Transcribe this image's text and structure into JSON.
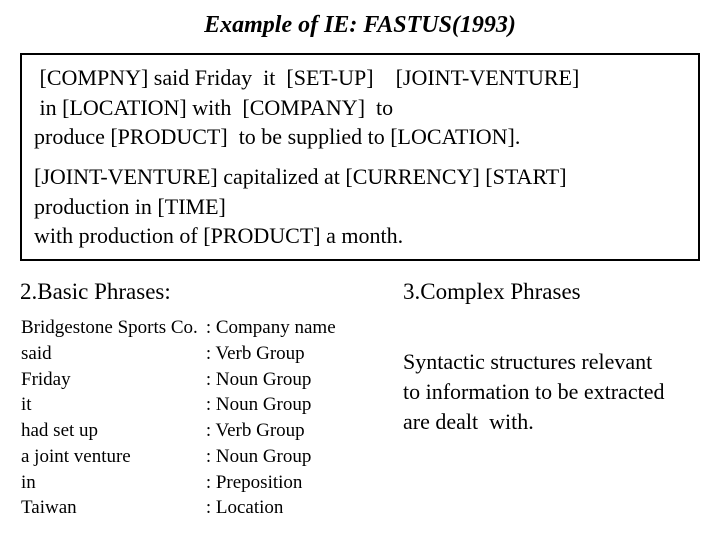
{
  "title": "Example of IE: FASTUS(1993)",
  "box": {
    "p1_l1": " [COMPNY] said Friday  it  [SET-UP]    [JOINT-VENTURE]",
    "p1_l2": " in [LOCATION] with  [COMPANY]  to",
    "p1_l3": "produce [PRODUCT]  to be supplied to [LOCATION].",
    "p2_l1": "[JOINT-VENTURE] capitalized at [CURRENCY] [START]",
    "p2_l2": "production in [TIME]",
    "p2_l3": "with production of [PRODUCT] a month."
  },
  "left": {
    "heading": "2.Basic Phrases:",
    "rows": [
      {
        "a": "Bridgestone Sports Co.",
        "b": ": Company name"
      },
      {
        "a": "said",
        "b": ": Verb Group"
      },
      {
        "a": "Friday",
        "b": ": Noun Group"
      },
      {
        "a": "it",
        "b": ": Noun Group"
      },
      {
        "a": "had set up",
        "b": ": Verb Group"
      },
      {
        "a": "a joint venture",
        "b": ": Noun Group"
      },
      {
        "a": "in",
        "b": ": Preposition"
      },
      {
        "a": "Taiwan",
        "b": ": Location"
      }
    ]
  },
  "right": {
    "heading": "3.Complex Phrases",
    "body_l1": "Syntactic structures relevant",
    "body_l2": "to information to be extracted",
    "body_l3": "are dealt  with."
  },
  "colors": {
    "text": "#000000",
    "background": "#ffffff",
    "border": "#000000"
  }
}
